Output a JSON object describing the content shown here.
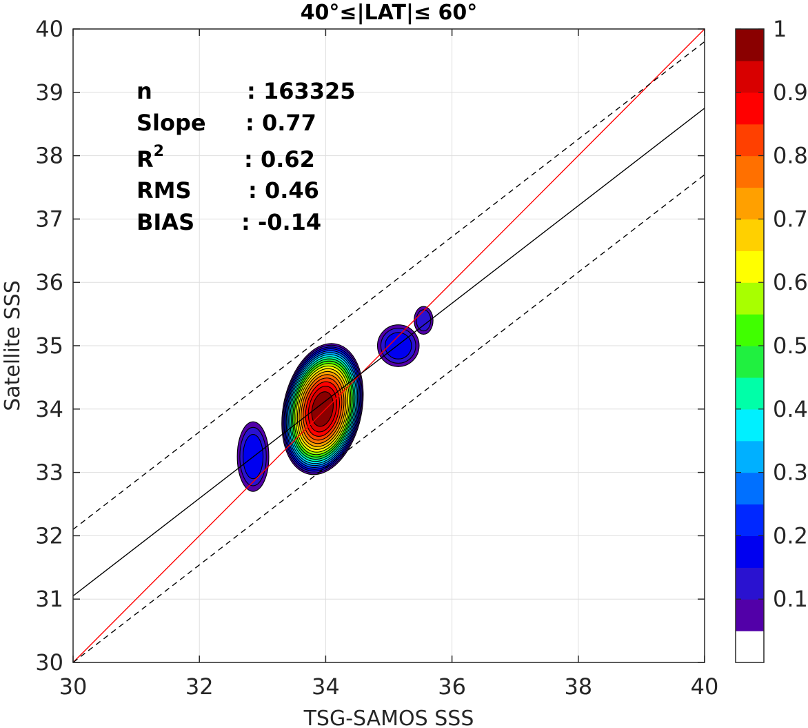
{
  "chart_data": {
    "type": "contour",
    "title": "40°≤|LAT|≤ 60°",
    "xlabel": "TSG-SAMOS SSS",
    "ylabel": "Satellite SSS",
    "xlim": [
      30,
      40
    ],
    "ylim": [
      30,
      40
    ],
    "xticks": [
      30,
      32,
      34,
      36,
      38,
      40
    ],
    "yticks": [
      30,
      31,
      32,
      33,
      34,
      35,
      36,
      37,
      38,
      39,
      40
    ],
    "grid": true,
    "stats": [
      {
        "key": "n",
        "value": ": 163325"
      },
      {
        "key": "Slope",
        "value": ": 0.77"
      },
      {
        "key": "R",
        "sup": "2",
        "value": ": 0.62"
      },
      {
        "key": "RMS",
        "value": ": 0.46"
      },
      {
        "key": "BIAS",
        "value": ": -0.14"
      }
    ],
    "lines": [
      {
        "role": "one-to-one",
        "color": "#ff0000",
        "x": [
          30,
          40
        ],
        "y": [
          30,
          40
        ]
      },
      {
        "role": "regression",
        "color": "#000000",
        "x": [
          30,
          40
        ],
        "y": [
          31.05,
          38.75
        ]
      },
      {
        "role": "upper-bound",
        "color": "#000000",
        "dashed": true,
        "x": [
          30,
          40
        ],
        "y": [
          32.1,
          39.8
        ]
      },
      {
        "role": "lower-bound",
        "color": "#000000",
        "dashed": true,
        "x": [
          30,
          40
        ],
        "y": [
          30.0,
          37.7
        ]
      }
    ],
    "blobs": [
      {
        "cx": 33.95,
        "cy": 34.0,
        "rx": 0.62,
        "ry": 1.05,
        "angle": 12,
        "peak": 1.0
      },
      {
        "cx": 32.85,
        "cy": 33.25,
        "rx": 0.25,
        "ry": 0.55,
        "angle": 0,
        "peak": 0.15
      },
      {
        "cx": 35.15,
        "cy": 35.0,
        "rx": 0.33,
        "ry": 0.33,
        "angle": 0,
        "peak": 0.15
      },
      {
        "cx": 35.55,
        "cy": 35.4,
        "rx": 0.15,
        "ry": 0.22,
        "angle": 0,
        "peak": 0.1
      }
    ],
    "colorbar": {
      "range": [
        0,
        1
      ],
      "ticks": [
        0.1,
        0.2,
        0.3,
        0.4,
        0.5,
        0.6,
        0.7,
        0.8,
        0.9,
        1
      ],
      "tick_labels": [
        "0.1",
        "0.2",
        "0.3",
        "0.4",
        "0.5",
        "0.6",
        "0.7",
        "0.8",
        "0.9",
        "1"
      ],
      "colors": [
        "#ffffff",
        "#5200a8",
        "#2a12d0",
        "#0000f0",
        "#0028ff",
        "#0070ff",
        "#00b0ff",
        "#00f0ff",
        "#00ffa8",
        "#20f040",
        "#40ff00",
        "#a8ff00",
        "#ffff00",
        "#ffd000",
        "#ffa000",
        "#ff7000",
        "#ff4000",
        "#ff0000",
        "#d80000",
        "#8a0000"
      ]
    }
  }
}
